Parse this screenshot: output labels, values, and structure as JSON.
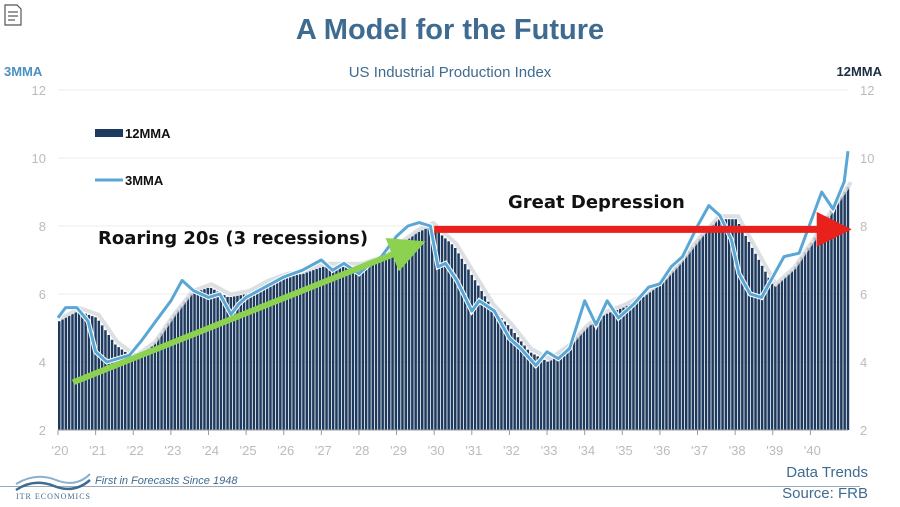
{
  "title": "A Model for the Future",
  "subtitle": "US Industrial Production Index",
  "left_axis_label": "3MMA",
  "right_axis_label": "12MMA",
  "footer": {
    "tagline": "First in Forecasts Since 1948",
    "logo_text": "ITR ECONOMICS",
    "data_trends": "Data Trends",
    "source": "Source: FRB"
  },
  "icons": {
    "notes": "notes-icon",
    "logo": "itr-logo-icon"
  },
  "colors": {
    "bars": "#1e3a5f",
    "line_3mma": "#5aa7d6",
    "green_arrow": "#8cd14f",
    "red_arrow": "#e8211d",
    "title": "#3e6b8f"
  },
  "chart_data": {
    "type": "bar",
    "title": "US Industrial Production Index",
    "ylim": [
      2,
      12
    ],
    "yticks": [
      "2",
      "4",
      "6",
      "8",
      "10",
      "12"
    ],
    "x_tick_labels": [
      "'20",
      "'21",
      "'22",
      "'23",
      "'24",
      "'25",
      "'26",
      "'27",
      "'28",
      "'29",
      "'30",
      "'31",
      "'32",
      "'33",
      "'34",
      "'35",
      "'36",
      "'37",
      "'38",
      "'39",
      "'40"
    ],
    "x_range": [
      1920.0,
      1941.0
    ],
    "legend": {
      "placement": "top-left",
      "entries": [
        "12MMA",
        "3MMA"
      ]
    },
    "series": [
      {
        "name": "12MMA",
        "type": "bar",
        "x": [
          1920.0,
          1920.5,
          1921.0,
          1921.5,
          1922.0,
          1922.5,
          1923.0,
          1923.5,
          1924.0,
          1924.5,
          1925.0,
          1925.5,
          1926.0,
          1926.5,
          1927.0,
          1927.5,
          1928.0,
          1928.5,
          1929.0,
          1929.5,
          1929.9,
          1930.5,
          1931.0,
          1931.5,
          1932.0,
          1932.5,
          1933.0,
          1933.5,
          1934.0,
          1934.5,
          1935.0,
          1935.5,
          1936.0,
          1936.5,
          1937.0,
          1937.5,
          1938.0,
          1938.5,
          1939.0,
          1939.5,
          1940.0,
          1940.5,
          1941.0
        ],
        "values": [
          5.2,
          5.5,
          5.3,
          4.5,
          4.1,
          4.5,
          5.3,
          6.0,
          6.2,
          5.9,
          6.0,
          6.3,
          6.5,
          6.6,
          6.8,
          6.8,
          6.8,
          7.0,
          7.4,
          7.8,
          8.0,
          7.4,
          6.5,
          5.6,
          5.0,
          4.3,
          4.0,
          4.4,
          5.0,
          5.4,
          5.6,
          5.9,
          6.3,
          6.9,
          7.6,
          8.2,
          8.2,
          7.2,
          6.2,
          6.7,
          7.5,
          8.4,
          9.2
        ]
      },
      {
        "name": "3MMA",
        "type": "line",
        "x": [
          1920.0,
          1920.2,
          1920.5,
          1920.8,
          1921.0,
          1921.3,
          1921.6,
          1921.9,
          1922.2,
          1922.6,
          1923.0,
          1923.3,
          1923.6,
          1924.0,
          1924.3,
          1924.6,
          1924.8,
          1925.0,
          1925.5,
          1926.0,
          1926.5,
          1927.0,
          1927.3,
          1927.6,
          1928.0,
          1928.3,
          1928.6,
          1929.0,
          1929.3,
          1929.6,
          1929.9,
          1930.1,
          1930.3,
          1930.6,
          1931.0,
          1931.2,
          1931.6,
          1932.0,
          1932.3,
          1932.7,
          1933.0,
          1933.3,
          1933.6,
          1934.0,
          1934.3,
          1934.6,
          1934.9,
          1935.3,
          1935.7,
          1936.0,
          1936.3,
          1936.6,
          1937.0,
          1937.3,
          1937.6,
          1937.9,
          1938.1,
          1938.4,
          1938.7,
          1939.0,
          1939.3,
          1939.7,
          1940.0,
          1940.3,
          1940.6,
          1940.9,
          1941.0
        ],
        "values": [
          5.3,
          5.6,
          5.6,
          5.2,
          4.3,
          4.0,
          4.1,
          4.2,
          4.6,
          5.2,
          5.8,
          6.4,
          6.1,
          5.9,
          6.0,
          5.4,
          5.7,
          5.9,
          6.2,
          6.5,
          6.7,
          7.0,
          6.7,
          6.9,
          6.6,
          6.9,
          7.1,
          7.7,
          8.0,
          8.1,
          8.0,
          6.8,
          6.9,
          6.4,
          5.5,
          5.8,
          5.5,
          4.7,
          4.4,
          3.9,
          4.3,
          4.1,
          4.4,
          5.8,
          5.1,
          5.8,
          5.3,
          5.7,
          6.2,
          6.3,
          6.8,
          7.1,
          8.0,
          8.6,
          8.3,
          7.6,
          6.6,
          6.0,
          5.9,
          6.5,
          7.1,
          7.2,
          8.1,
          9.0,
          8.5,
          9.3,
          10.2
        ]
      }
    ],
    "annotations": [
      {
        "text": "Roaring 20s (3 recessions)",
        "arrow": "green",
        "from": [
          1920.4,
          3.4
        ],
        "to": [
          1929.7,
          7.5
        ]
      },
      {
        "text": "Great Depression",
        "arrow": "red",
        "from": [
          1930.0,
          7.9
        ],
        "to": [
          1940.9,
          7.9
        ]
      }
    ]
  }
}
